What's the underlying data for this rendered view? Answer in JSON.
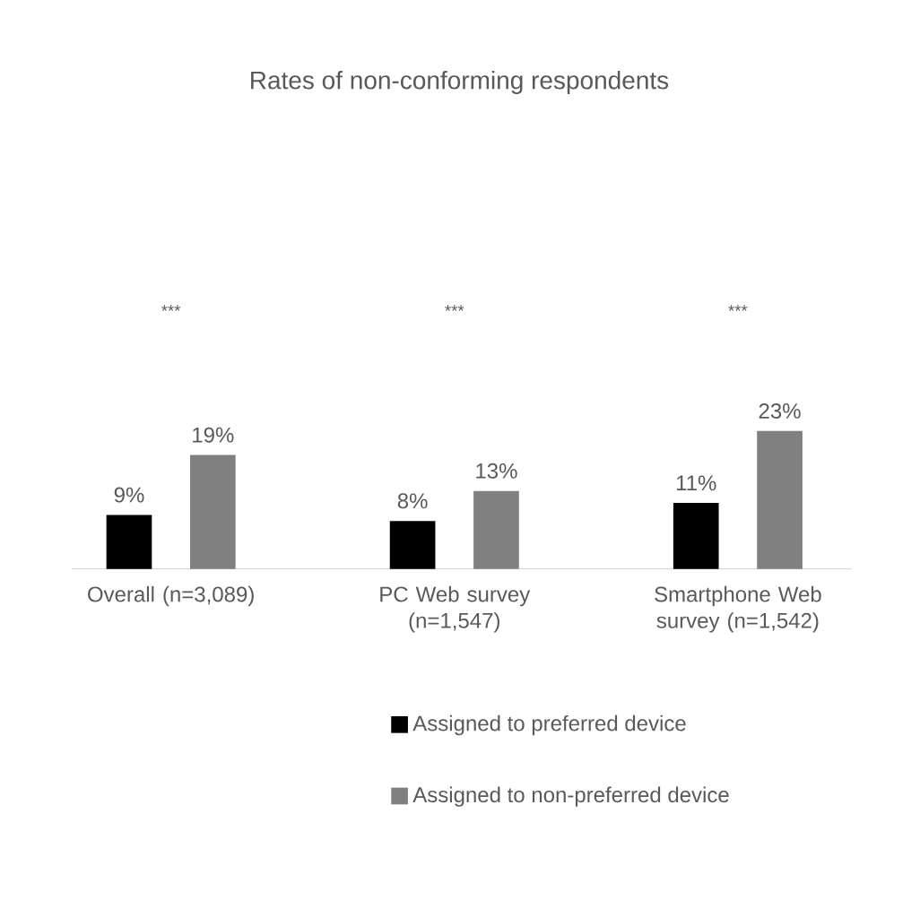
{
  "chart_data": {
    "type": "bar",
    "title": "Rates of non-conforming respondents",
    "categories": [
      "Overall (n=3,089)",
      "PC Web survey (n=1,547)",
      "Smartphone Web survey (n=1,542)"
    ],
    "series": [
      {
        "name": "Assigned to preferred device",
        "color": "#000000",
        "values": [
          9,
          8,
          11
        ],
        "value_labels": [
          "9%",
          "8%",
          "11%"
        ]
      },
      {
        "name": "Assigned to non-preferred device",
        "color": "#808080",
        "values": [
          19,
          13,
          23
        ],
        "value_labels": [
          "19%",
          "13%",
          "23%"
        ]
      }
    ],
    "annotations": [
      "***",
      "***",
      "***"
    ],
    "legend": "bottom"
  }
}
